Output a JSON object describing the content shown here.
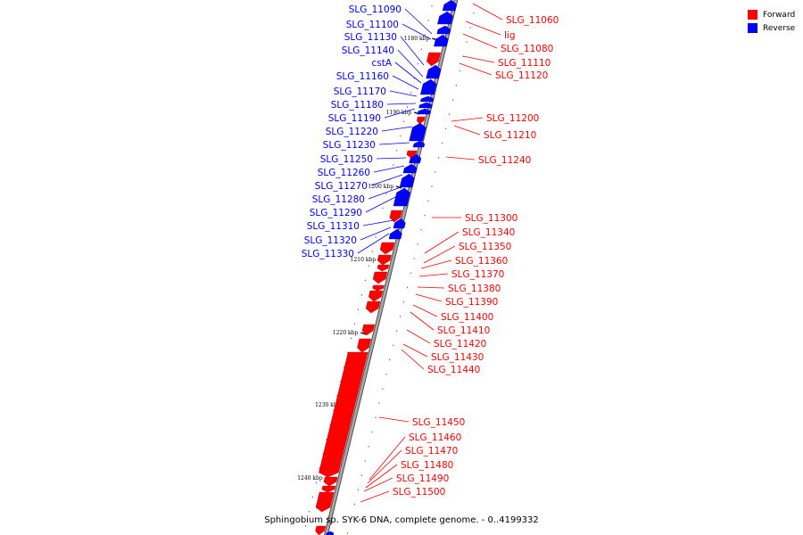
{
  "caption": "Sphingobium sp. SYK-6 DNA, complete genome. - 0..4199332",
  "legend": [
    {
      "label": "Forward",
      "color": "#ff0000"
    },
    {
      "label": "Reverse",
      "color": "#0000ff"
    }
  ],
  "colors": {
    "forward": "#ff0000",
    "reverse": "#0000ff",
    "backbone": "#888888"
  },
  "ticks": [
    "1180 kbp",
    "1190 kbp",
    "1200 kbp",
    "1210 kbp",
    "1220 kbp",
    "1230 kbp",
    "1240 kbp"
  ],
  "genes": [
    {
      "name": "SLG_11060",
      "strand": "forward"
    },
    {
      "name": "lig",
      "strand": "forward"
    },
    {
      "name": "SLG_11080",
      "strand": "forward"
    },
    {
      "name": "SLG_11090",
      "strand": "reverse"
    },
    {
      "name": "SLG_11100",
      "strand": "reverse"
    },
    {
      "name": "SLG_11110",
      "strand": "forward"
    },
    {
      "name": "SLG_11120",
      "strand": "forward"
    },
    {
      "name": "SLG_11130",
      "strand": "reverse"
    },
    {
      "name": "SLG_11140",
      "strand": "reverse"
    },
    {
      "name": "cstA",
      "strand": "reverse"
    },
    {
      "name": "SLG_11160",
      "strand": "reverse"
    },
    {
      "name": "SLG_11170",
      "strand": "reverse"
    },
    {
      "name": "SLG_11180",
      "strand": "reverse"
    },
    {
      "name": "SLG_11190",
      "strand": "reverse"
    },
    {
      "name": "SLG_11200",
      "strand": "forward"
    },
    {
      "name": "SLG_11210",
      "strand": "forward"
    },
    {
      "name": "SLG_11220",
      "strand": "reverse"
    },
    {
      "name": "SLG_11230",
      "strand": "reverse"
    },
    {
      "name": "SLG_11240",
      "strand": "forward"
    },
    {
      "name": "SLG_11250",
      "strand": "reverse"
    },
    {
      "name": "SLG_11260",
      "strand": "reverse"
    },
    {
      "name": "SLG_11270",
      "strand": "reverse"
    },
    {
      "name": "SLG_11280",
      "strand": "reverse"
    },
    {
      "name": "SLG_11290",
      "strand": "reverse"
    },
    {
      "name": "SLG_11300",
      "strand": "forward"
    },
    {
      "name": "SLG_11310",
      "strand": "reverse"
    },
    {
      "name": "SLG_11320",
      "strand": "reverse"
    },
    {
      "name": "SLG_11330",
      "strand": "reverse"
    },
    {
      "name": "SLG_11340",
      "strand": "forward"
    },
    {
      "name": "SLG_11350",
      "strand": "forward"
    },
    {
      "name": "SLG_11360",
      "strand": "forward"
    },
    {
      "name": "SLG_11370",
      "strand": "forward"
    },
    {
      "name": "SLG_11380",
      "strand": "forward"
    },
    {
      "name": "SLG_11390",
      "strand": "forward"
    },
    {
      "name": "SLG_11400",
      "strand": "forward"
    },
    {
      "name": "SLG_11410",
      "strand": "forward"
    },
    {
      "name": "SLG_11420",
      "strand": "forward"
    },
    {
      "name": "SLG_11430",
      "strand": "forward"
    },
    {
      "name": "SLG_11440",
      "strand": "forward"
    },
    {
      "name": "SLG_11450",
      "strand": "forward"
    },
    {
      "name": "SLG_11460",
      "strand": "forward"
    },
    {
      "name": "SLG_11470",
      "strand": "forward"
    },
    {
      "name": "SLG_11480",
      "strand": "forward"
    },
    {
      "name": "SLG_11490",
      "strand": "forward"
    },
    {
      "name": "SLG_11500",
      "strand": "forward"
    }
  ]
}
